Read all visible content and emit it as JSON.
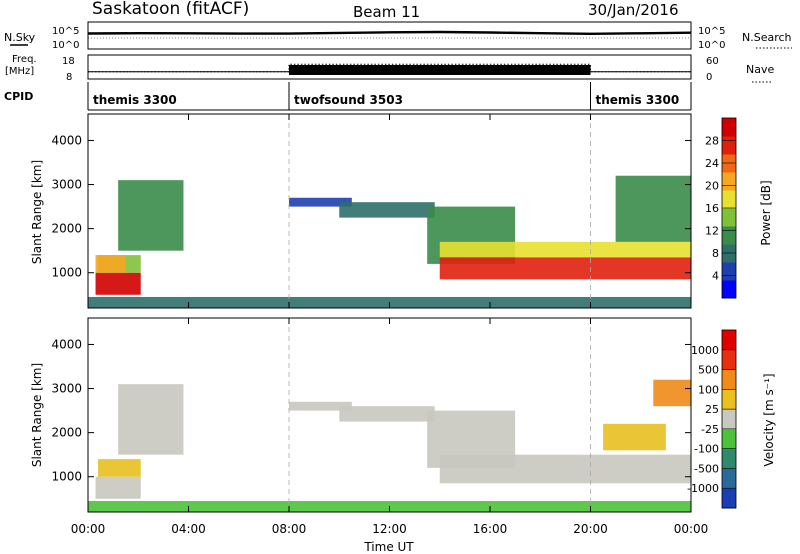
{
  "header": {
    "title": "Saskatoon (fitACF)",
    "beam": "Beam 11",
    "date": "30/Jan/2016"
  },
  "aux": {
    "nsky_label": "N.Sky",
    "nsearch_label": "N.Search",
    "freq_label_top": "Freq.",
    "freq_label_unit": "[MHz]",
    "nave_label": "Nave",
    "cpid_label": "CPID",
    "nsky_ticks": [
      "10^5",
      "10^0"
    ],
    "nsearch_ticks": [
      "10^5",
      "10^0"
    ],
    "freq_ticks": [
      "18",
      "8"
    ],
    "nave_ticks": [
      "60",
      "0"
    ]
  },
  "cpid_segments": [
    {
      "start": 0,
      "end": 8,
      "label": "themis 3300"
    },
    {
      "start": 8,
      "end": 20,
      "label": "twofsound 3503"
    },
    {
      "start": 20,
      "end": 24,
      "label": "themis 3300"
    }
  ],
  "power_colorbar": {
    "label": "Power [dB]",
    "ticks": [
      "28",
      "24",
      "20",
      "16",
      "12",
      "8",
      "4"
    ],
    "colors": [
      "#0000ff",
      "#1e3fb0",
      "#2e6f6a",
      "#3a8c4a",
      "#7fc23a",
      "#e8e030",
      "#f6a623",
      "#f06a15",
      "#e0200f",
      "#d00000"
    ]
  },
  "velocity_colorbar": {
    "label": "Velocity [m s⁻¹]",
    "ticks": [
      "1000",
      "500",
      "100",
      "25",
      "-25",
      "-100",
      "-500",
      "-1000"
    ],
    "colors": [
      "#1a3fb5",
      "#2a6a9a",
      "#2e8a6a",
      "#4cc23a",
      "#c8c8c0",
      "#e8c020",
      "#f08a18",
      "#e83010",
      "#e00000"
    ]
  },
  "xaxis": {
    "label": "Time UT",
    "ticks": [
      "00:00",
      "04:00",
      "08:00",
      "12:00",
      "16:00",
      "20:00",
      "00:00"
    ]
  },
  "chart_data": [
    {
      "type": "line",
      "panel": "N.Sky / N.Search",
      "ylabel": "N.Sky",
      "y2label": "N.Search",
      "xlim": [
        0,
        24
      ],
      "note": "log scale 10^0 to 10^5",
      "series": [
        {
          "name": "N.Sky",
          "x": [
            0,
            2,
            4,
            6,
            8,
            10,
            12,
            14,
            16,
            18,
            20,
            22,
            24
          ],
          "y": [
            1200,
            1400,
            1300,
            1100,
            1100,
            1600,
            2200,
            2600,
            2000,
            1400,
            1000,
            1300,
            1800
          ]
        }
      ]
    },
    {
      "type": "line",
      "panel": "Freq. / Nave",
      "ylabel": "Freq. [MHz]",
      "y2label": "Nave",
      "ylim": [
        8,
        18
      ],
      "y2lim": [
        0,
        60
      ],
      "series": [
        {
          "name": "Freq.",
          "x": [
            0,
            8,
            8,
            20,
            20,
            24
          ],
          "y": [
            11,
            11,
            11,
            11,
            11,
            11
          ]
        },
        {
          "name": "Nave",
          "x": [
            0,
            8,
            8,
            20,
            20,
            24
          ],
          "y": [
            18,
            18,
            37,
            37,
            18,
            18
          ]
        }
      ]
    },
    {
      "type": "heatmap",
      "panel": "Power",
      "xlabel": "",
      "ylabel": "Slant Range [km]",
      "xlim": [
        0,
        24
      ],
      "ylim": [
        200,
        4600
      ],
      "yticks": [
        "1000",
        "2000",
        "3000",
        "4000"
      ],
      "colorbar": "Power [dB]",
      "regions": [
        {
          "t0": 0.3,
          "t1": 2.1,
          "r0": 500,
          "r1": 1000,
          "level": 9
        },
        {
          "t0": 0.4,
          "t1": 2.1,
          "r0": 1000,
          "r1": 1400,
          "level": 4
        },
        {
          "t0": 0.3,
          "t1": 1.5,
          "r0": 1000,
          "r1": 1400,
          "level": 6
        },
        {
          "t0": 1.2,
          "t1": 3.8,
          "r0": 1500,
          "r1": 3100,
          "level": 3
        },
        {
          "t0": 8.0,
          "t1": 10.5,
          "r0": 2500,
          "r1": 2700,
          "level": 1
        },
        {
          "t0": 10.0,
          "t1": 13.8,
          "r0": 2250,
          "r1": 2600,
          "level": 2
        },
        {
          "t0": 13.5,
          "t1": 17.0,
          "r0": 1200,
          "r1": 2500,
          "level": 3
        },
        {
          "t0": 14.0,
          "t1": 24.0,
          "r0": 850,
          "r1": 1350,
          "level": 8
        },
        {
          "t0": 14.0,
          "t1": 24.0,
          "r0": 1350,
          "r1": 1700,
          "level": 5
        },
        {
          "t0": 21.0,
          "t1": 24.0,
          "r0": 1700,
          "r1": 3200,
          "level": 3
        },
        {
          "t0": 0.0,
          "t1": 24.0,
          "r0": 200,
          "r1": 450,
          "level": 2
        }
      ]
    },
    {
      "type": "heatmap",
      "panel": "Velocity",
      "xlabel": "Time UT",
      "ylabel": "Slant Range [km]",
      "xlim": [
        0,
        24
      ],
      "ylim": [
        200,
        4600
      ],
      "yticks": [
        "1000",
        "2000",
        "3000",
        "4000"
      ],
      "colorbar": "Velocity [m s⁻¹]",
      "regions": [
        {
          "t0": 0.3,
          "t1": 2.1,
          "r0": 500,
          "r1": 1000,
          "level": 4
        },
        {
          "t0": 0.4,
          "t1": 2.1,
          "r0": 1000,
          "r1": 1400,
          "level": 3
        },
        {
          "t0": 1.2,
          "t1": 3.8,
          "r0": 1500,
          "r1": 3100,
          "level": 4
        },
        {
          "t0": 8.0,
          "t1": 10.5,
          "r0": 2500,
          "r1": 2700,
          "level": 4
        },
        {
          "t0": 10.0,
          "t1": 13.8,
          "r0": 2250,
          "r1": 2600,
          "level": 4
        },
        {
          "t0": 13.5,
          "t1": 17.0,
          "r0": 1200,
          "r1": 2500,
          "level": 4
        },
        {
          "t0": 14.0,
          "t1": 24.0,
          "r0": 850,
          "r1": 1500,
          "level": 4
        },
        {
          "t0": 20.5,
          "t1": 23.0,
          "r0": 1600,
          "r1": 2200,
          "level": 3
        },
        {
          "t0": 22.5,
          "t1": 24.0,
          "r0": 2600,
          "r1": 3200,
          "level": 2
        },
        {
          "t0": 0.0,
          "t1": 24.0,
          "r0": 200,
          "r1": 450,
          "level": 5
        }
      ]
    }
  ]
}
